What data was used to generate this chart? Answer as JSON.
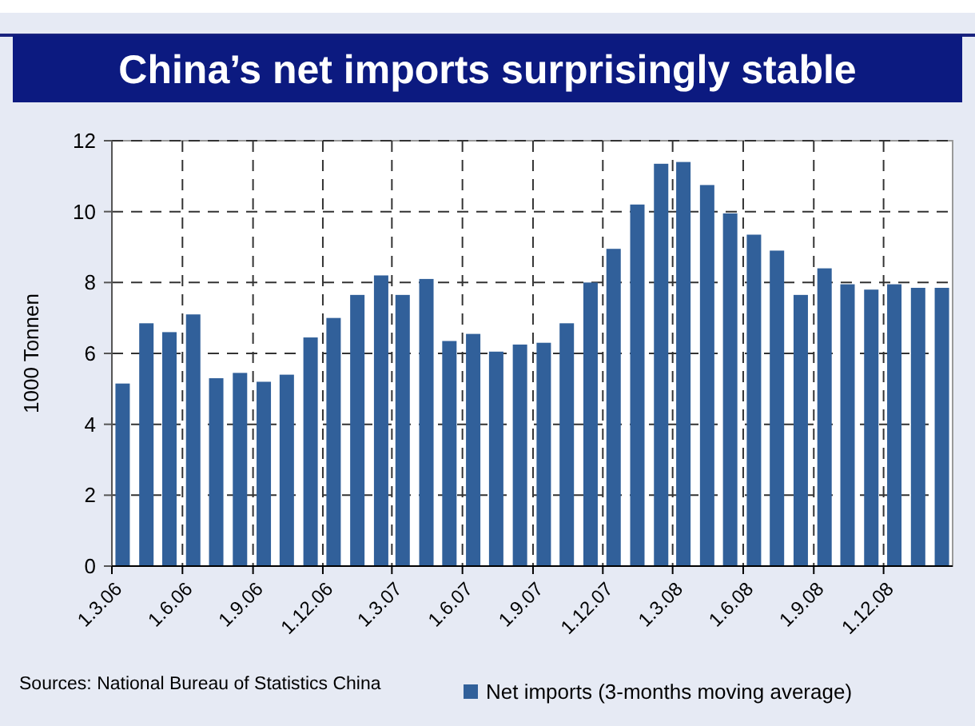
{
  "chart_data": {
    "type": "bar",
    "title": "China’s net imports surprisingly stable",
    "ylabel": "1000 Tonnen",
    "x": [
      "2006-03-15",
      "2006-04-15",
      "2006-05-15",
      "2006-06-15",
      "2006-07-15",
      "2006-08-15",
      "2006-09-15",
      "2006-10-15",
      "2006-11-15",
      "2006-12-15",
      "2007-01-15",
      "2007-02-15",
      "2007-03-15",
      "2007-04-15",
      "2007-05-15",
      "2007-06-15",
      "2007-07-15",
      "2007-08-15",
      "2007-09-15",
      "2007-10-15",
      "2007-11-15",
      "2007-12-15",
      "2008-01-15",
      "2008-02-15",
      "2008-03-15",
      "2008-04-15",
      "2008-05-15",
      "2008-06-15",
      "2008-07-15",
      "2008-08-15",
      "2008-09-15",
      "2008-10-15",
      "2008-11-15",
      "2008-12-15",
      "2009-01-15",
      "2009-02-15"
    ],
    "series": [
      {
        "name": "Net imports (3-months moving average)",
        "color": "#31609a",
        "values": [
          5.15,
          6.85,
          6.6,
          7.1,
          5.3,
          5.45,
          5.2,
          5.4,
          6.45,
          7.0,
          7.65,
          8.2,
          7.65,
          8.1,
          6.35,
          6.55,
          6.05,
          6.25,
          6.3,
          6.85,
          8.0,
          8.95,
          10.2,
          11.35,
          11.4,
          10.75,
          9.95,
          9.35,
          8.9,
          7.65,
          8.4,
          7.95,
          7.8,
          7.95,
          7.85,
          7.85
        ]
      }
    ],
    "xlim": [
      "2006-03-01",
      "2009-03-01"
    ],
    "xticks": [
      {
        "value": "2006-03-01",
        "label": "1.3.06"
      },
      {
        "value": "2006-06-01",
        "label": "1.6.06"
      },
      {
        "value": "2006-09-01",
        "label": "1.9.06"
      },
      {
        "value": "2006-12-01",
        "label": "1.12.06"
      },
      {
        "value": "2007-03-01",
        "label": "1.3.07"
      },
      {
        "value": "2007-06-01",
        "label": "1.6.07"
      },
      {
        "value": "2007-09-01",
        "label": "1.9.07"
      },
      {
        "value": "2007-12-01",
        "label": "1.12.07"
      },
      {
        "value": "2008-03-01",
        "label": "1.3.08"
      },
      {
        "value": "2008-06-01",
        "label": "1.6.08"
      },
      {
        "value": "2008-09-01",
        "label": "1.9.08"
      },
      {
        "value": "2008-12-01",
        "label": "1.12.08"
      }
    ],
    "ylim": [
      0,
      12
    ],
    "yticks": [
      0,
      2,
      4,
      6,
      8,
      10,
      12
    ],
    "grid": true,
    "legend": "bottom right",
    "annotations": [
      "Sources: National Bureau of Statistics China"
    ]
  }
}
